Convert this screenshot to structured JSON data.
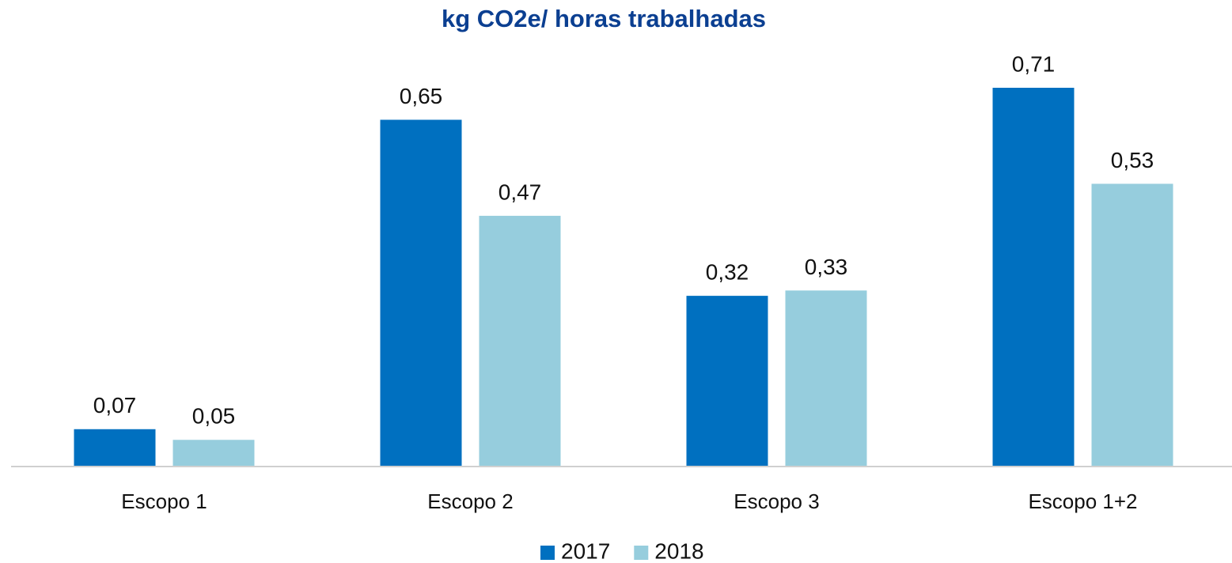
{
  "chart_data": {
    "type": "bar",
    "title": "kg CO2e/ horas trabalhadas",
    "categories": [
      "Escopo 1",
      "Escopo 2",
      "Escopo 3",
      "Escopo 1+2"
    ],
    "series": [
      {
        "name": "2017",
        "color": "#0070c0",
        "values": [
          0.07,
          0.65,
          0.32,
          0.71
        ],
        "value_labels": [
          "0,07",
          "0,65",
          "0,32",
          "0,71"
        ]
      },
      {
        "name": "2018",
        "color": "#96cddd",
        "values": [
          0.05,
          0.47,
          0.33,
          0.53
        ],
        "value_labels": [
          "0,05",
          "0,47",
          "0,33",
          "0,53"
        ]
      }
    ],
    "legend": "bottom"
  }
}
